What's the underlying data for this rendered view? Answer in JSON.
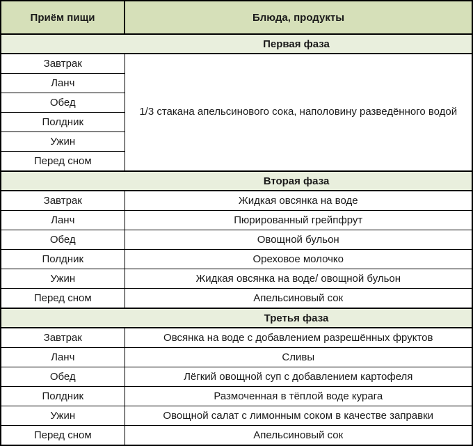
{
  "colors": {
    "header_bg": "#d6e0b9",
    "phase_bg": "#e9efdd",
    "border": "#000000",
    "text": "#1a1a1a",
    "row_bg": "#ffffff"
  },
  "table": {
    "header": {
      "col1": "Приём пищи",
      "col2": "Блюда, продукты"
    },
    "sections": [
      {
        "title": "Первая фаза",
        "merged_dish": "1/3 стакана апельсинового сока, наполовину разведённого водой",
        "rows": [
          {
            "meal": "Завтрак"
          },
          {
            "meal": "Ланч"
          },
          {
            "meal": "Обед"
          },
          {
            "meal": "Полдник"
          },
          {
            "meal": "Ужин"
          },
          {
            "meal": "Перед сном"
          }
        ]
      },
      {
        "title": "Вторая фаза",
        "rows": [
          {
            "meal": "Завтрак",
            "dish": "Жидкая овсянка на воде"
          },
          {
            "meal": "Ланч",
            "dish": "Пюрированный грейпфрут"
          },
          {
            "meal": "Обед",
            "dish": "Овощной бульон"
          },
          {
            "meal": "Полдник",
            "dish": "Ореховое молочко"
          },
          {
            "meal": "Ужин",
            "dish": "Жидкая овсянка на воде/ овощной бульон"
          },
          {
            "meal": "Перед сном",
            "dish": "Апельсиновый сок"
          }
        ]
      },
      {
        "title": "Третья фаза",
        "rows": [
          {
            "meal": "Завтрак",
            "dish": "Овсянка на воде с добавлением разрешённых фруктов"
          },
          {
            "meal": "Ланч",
            "dish": "Сливы"
          },
          {
            "meal": "Обед",
            "dish": "Лёгкий овощной суп с добавлением картофеля"
          },
          {
            "meal": "Полдник",
            "dish": "Размоченная в тёплой воде курага"
          },
          {
            "meal": "Ужин",
            "dish": "Овощной салат с лимонным соком в качестве заправки"
          },
          {
            "meal": "Перед сном",
            "dish": "Апельсиновый сок"
          }
        ]
      }
    ]
  }
}
